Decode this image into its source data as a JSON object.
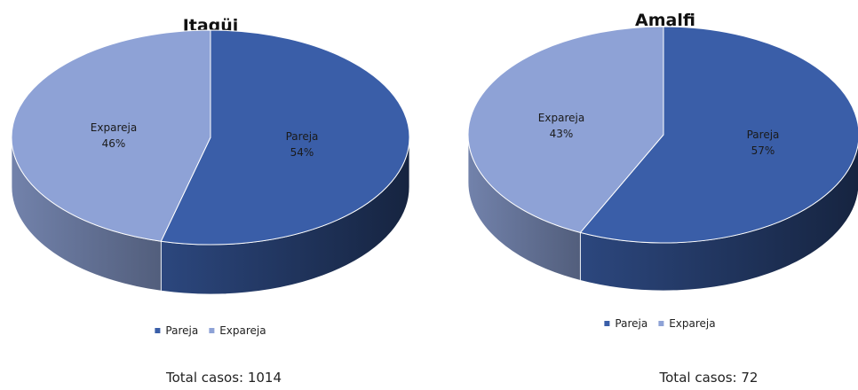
{
  "colors": {
    "pareja": "#3A5EA8",
    "expareja": "#8EA2D6"
  },
  "chart_data": [
    {
      "type": "pie",
      "title": "Itagüi",
      "categories": [
        "Pareja",
        "Expareja"
      ],
      "values": [
        54,
        46
      ],
      "slice_labels": [
        {
          "name": "Pareja",
          "pct": "54%"
        },
        {
          "name": "Expareja",
          "pct": "46%"
        }
      ],
      "legend": [
        "Pareja",
        "Expareja"
      ],
      "legend_position": "bottom",
      "total": "Total casos: 1014"
    },
    {
      "type": "pie",
      "title": "Amalfi",
      "categories": [
        "Pareja",
        "Expareja"
      ],
      "values": [
        57,
        43
      ],
      "slice_labels": [
        {
          "name": "Pareja",
          "pct": "57%"
        },
        {
          "name": "Expareja",
          "pct": "43%"
        }
      ],
      "legend": [
        "Pareja",
        "Expareja"
      ],
      "legend_position": "bottom",
      "total": "Total casos: 72"
    }
  ]
}
